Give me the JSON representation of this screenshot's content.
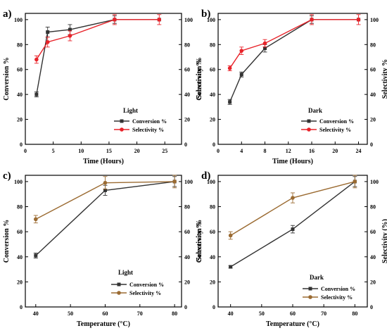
{
  "chart_data": [
    {
      "type": "line",
      "panel_label": "a)",
      "annotation": "Light",
      "xlabel": "Time (Hours)",
      "ylabel": "Conversion %",
      "y2label": "Selectivity %",
      "x_ticks": [
        0,
        5,
        10,
        15,
        20,
        25
      ],
      "xlim": [
        0,
        28
      ],
      "ylim": [
        0,
        105
      ],
      "y_ticks": [
        0,
        20,
        40,
        60,
        80,
        100
      ],
      "legend_position": "center-right",
      "series": [
        {
          "name": "Conversion %",
          "axis": "left",
          "color": "#333333",
          "marker": "square",
          "x": [
            2,
            4,
            8,
            16,
            24
          ],
          "y": [
            40,
            90,
            92,
            100,
            100
          ],
          "err": [
            2,
            4,
            4,
            3,
            0
          ]
        },
        {
          "name": "Selectivity %",
          "axis": "right",
          "color": "#e8232a",
          "marker": "circle",
          "x": [
            2,
            4,
            8,
            16,
            24
          ],
          "y": [
            68,
            82,
            87,
            100,
            100
          ],
          "err": [
            3,
            4,
            4,
            4,
            4
          ]
        }
      ]
    },
    {
      "type": "line",
      "panel_label": "b)",
      "annotation": "Dark",
      "xlabel": "Time (Hours)",
      "ylabel": "Conversion %",
      "y2label": "Selectivity %",
      "x_ticks": [
        0,
        4,
        8,
        12,
        16,
        20,
        24
      ],
      "xlim": [
        0,
        25.5
      ],
      "ylim": [
        0,
        105
      ],
      "y_ticks": [
        0,
        20,
        40,
        60,
        80,
        100
      ],
      "legend_position": "center-right",
      "series": [
        {
          "name": "Conversion %",
          "axis": "left",
          "color": "#333333",
          "marker": "square",
          "x": [
            2,
            4,
            8,
            16,
            24
          ],
          "y": [
            34,
            56,
            77,
            100,
            100
          ],
          "err": [
            2,
            2,
            3,
            3,
            0
          ]
        },
        {
          "name": "Selectivity %",
          "axis": "right",
          "color": "#e8232a",
          "marker": "circle",
          "x": [
            2,
            4,
            8,
            16,
            24
          ],
          "y": [
            61,
            75,
            81,
            100,
            100
          ],
          "err": [
            2,
            3,
            3,
            4,
            4
          ]
        }
      ]
    },
    {
      "type": "line",
      "panel_label": "c)",
      "annotation": "Light",
      "xlabel": "Temperature (°C)",
      "ylabel": "Conversion %",
      "y2label": "Selectivity %",
      "x_ticks": [
        40,
        50,
        60,
        70,
        80
      ],
      "xlim": [
        37,
        82
      ],
      "ylim": [
        0,
        105
      ],
      "y_ticks": [
        0,
        20,
        40,
        60,
        80,
        100
      ],
      "legend_position": "bottom-right",
      "series": [
        {
          "name": "Conversion %",
          "axis": "left",
          "color": "#333333",
          "marker": "square",
          "x": [
            40,
            60,
            80
          ],
          "y": [
            41,
            93,
            100
          ],
          "err": [
            2,
            4,
            4
          ]
        },
        {
          "name": "Selectivity %",
          "axis": "right",
          "color": "#9b6b32",
          "marker": "circle",
          "x": [
            40,
            60,
            80
          ],
          "y": [
            70,
            99,
            100
          ],
          "err": [
            3,
            5,
            5
          ]
        }
      ]
    },
    {
      "type": "line",
      "panel_label": "d)",
      "annotation": "Dark",
      "xlabel": "Temperature (°C)",
      "ylabel": "Conversion %",
      "y2label": "Selectivity (%)",
      "x_ticks": [
        40,
        50,
        60,
        70,
        80
      ],
      "xlim": [
        36,
        84
      ],
      "ylim": [
        0,
        105
      ],
      "y_ticks": [
        0,
        20,
        40,
        60,
        80,
        100
      ],
      "legend_position": "bottom-right",
      "series": [
        {
          "name": "Conversion %",
          "axis": "left",
          "color": "#333333",
          "marker": "square",
          "x": [
            40,
            60,
            80
          ],
          "y": [
            32,
            62,
            100
          ],
          "err": [
            1,
            3,
            4
          ]
        },
        {
          "name": "Selectivity %",
          "axis": "right",
          "color": "#9b6b32",
          "marker": "circle",
          "x": [
            40,
            60,
            80
          ],
          "y": [
            57,
            87,
            100
          ],
          "err": [
            3,
            4,
            5
          ]
        }
      ]
    }
  ]
}
